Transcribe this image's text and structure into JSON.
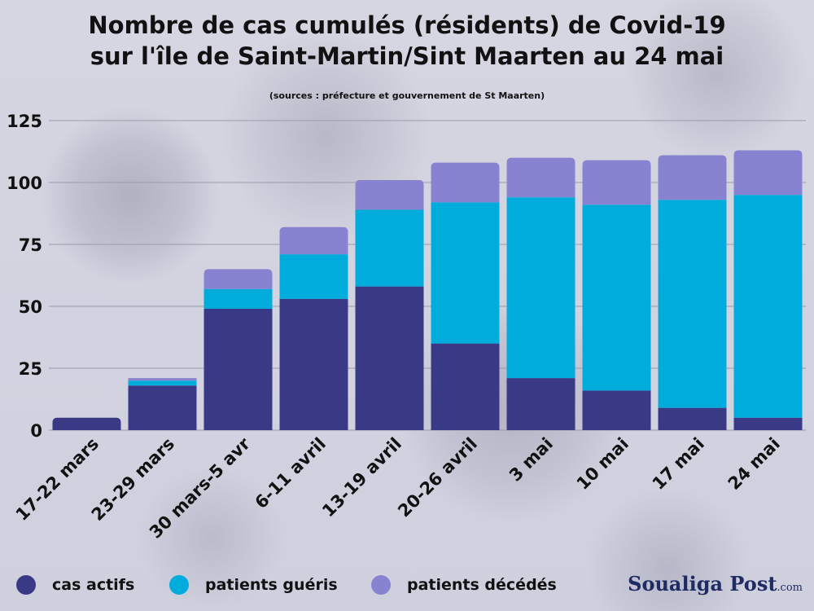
{
  "title_line1": "Nombre de  cas cumulés (résidents) de Covid-19",
  "title_line2": "sur l'île de Saint-Martin/Sint Maarten au 24 mai",
  "subtitle": "(sources : préfecture et gouvernement de St Maarten)",
  "brand": {
    "name": "Soualiga Post",
    "suffix": ".com"
  },
  "legend": [
    {
      "label": "cas actifs",
      "color": "#3a3985"
    },
    {
      "label": "patients guéris",
      "color": "#00acdc"
    },
    {
      "label": "patients décédés",
      "color": "#8783d0"
    }
  ],
  "chart_data": {
    "type": "bar",
    "stacked": true,
    "categories": [
      "17-22 mars",
      "23-29 mars",
      "30 mars-5 avr",
      "6-11 avril",
      "13-19 avril",
      "20-26 avril",
      "3 mai",
      "10 mai",
      "17 mai",
      "24 mai"
    ],
    "series": [
      {
        "name": "cas actifs",
        "color": "#3a3985",
        "values": [
          5,
          18,
          49,
          53,
          58,
          35,
          21,
          16,
          9,
          5
        ]
      },
      {
        "name": "patients guéris",
        "color": "#00acdc",
        "values": [
          0,
          2,
          8,
          18,
          31,
          57,
          73,
          75,
          84,
          90
        ]
      },
      {
        "name": "patients décédés",
        "color": "#8783d0",
        "values": [
          0,
          1,
          8,
          11,
          12,
          16,
          16,
          18,
          18,
          18
        ]
      }
    ],
    "ylim": [
      0,
      125
    ],
    "yticks": [
      0,
      25,
      50,
      75,
      100,
      125
    ],
    "grid": true,
    "legend_position": "bottom",
    "xlabel": "",
    "ylabel": ""
  }
}
